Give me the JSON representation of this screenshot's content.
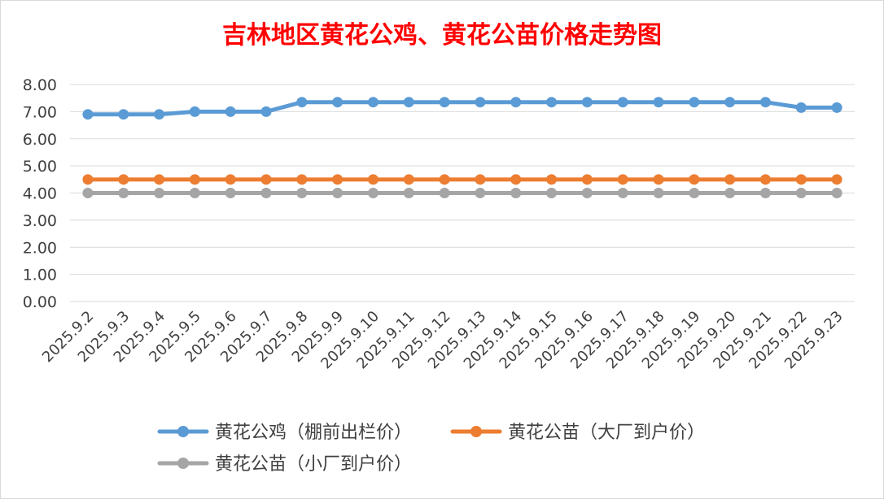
{
  "chart_data": {
    "type": "line",
    "title": "吉林地区黄花公鸡、黄花公苗价格走势图",
    "title_color": "#ff0000",
    "categories": [
      "2025.9.2",
      "2025.9.3",
      "2025.9.4",
      "2025.9.5",
      "2025.9.6",
      "2025.9.7",
      "2025.9.8",
      "2025.9.9",
      "2025.9.10",
      "2025.9.11",
      "2025.9.12",
      "2025.9.13",
      "2025.9.14",
      "2025.9.15",
      "2025.9.16",
      "2025.9.17",
      "2025.9.18",
      "2025.9.19",
      "2025.9.20",
      "2025.9.21",
      "2025.9.22",
      "2025.9.23"
    ],
    "series": [
      {
        "name": "黄花公鸡（棚前出栏价）",
        "color": "#5b9bd5",
        "values": [
          6.9,
          6.9,
          6.9,
          7.0,
          7.0,
          7.0,
          7.35,
          7.35,
          7.35,
          7.35,
          7.35,
          7.35,
          7.35,
          7.35,
          7.35,
          7.35,
          7.35,
          7.35,
          7.35,
          7.35,
          7.15,
          7.15
        ]
      },
      {
        "name": "黄花公苗（大厂到户价）",
        "color": "#ed7d31",
        "values": [
          4.5,
          4.5,
          4.5,
          4.5,
          4.5,
          4.5,
          4.5,
          4.5,
          4.5,
          4.5,
          4.5,
          4.5,
          4.5,
          4.5,
          4.5,
          4.5,
          4.5,
          4.5,
          4.5,
          4.5,
          4.5,
          4.5
        ]
      },
      {
        "name": "黄花公苗（小厂到户价）",
        "color": "#a5a5a5",
        "values": [
          4.0,
          4.0,
          4.0,
          4.0,
          4.0,
          4.0,
          4.0,
          4.0,
          4.0,
          4.0,
          4.0,
          4.0,
          4.0,
          4.0,
          4.0,
          4.0,
          4.0,
          4.0,
          4.0,
          4.0,
          4.0,
          4.0
        ]
      }
    ],
    "ylim": [
      0,
      8
    ],
    "y_ticks": [
      "0.00",
      "1.00",
      "2.00",
      "3.00",
      "4.00",
      "5.00",
      "6.00",
      "7.00",
      "8.00"
    ],
    "grid": true,
    "legend_position": "bottom"
  }
}
